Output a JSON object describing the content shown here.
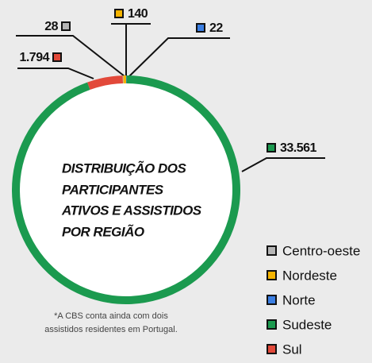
{
  "chart_data": {
    "type": "donut",
    "title": [
      "DISTRIBUIÇÃO DOS",
      "PARTICIPANTES",
      "ATIVOS E ASSISTIDOS",
      "POR REGIÃO"
    ],
    "categories": [
      "Centro-oeste",
      "Nordeste",
      "Norte",
      "Sudeste",
      "Sul"
    ],
    "values": [
      28,
      140,
      22,
      33561,
      1794
    ],
    "value_labels": [
      "28",
      "140",
      "22",
      "33.561",
      "1.794"
    ],
    "colors": [
      "#b5b5b5",
      "#f5b400",
      "#3b7fe3",
      "#1b9a4f",
      "#e2493a"
    ],
    "note": [
      "*A CBS conta ainda com dois",
      "assistidos residentes em Portugal."
    ]
  }
}
